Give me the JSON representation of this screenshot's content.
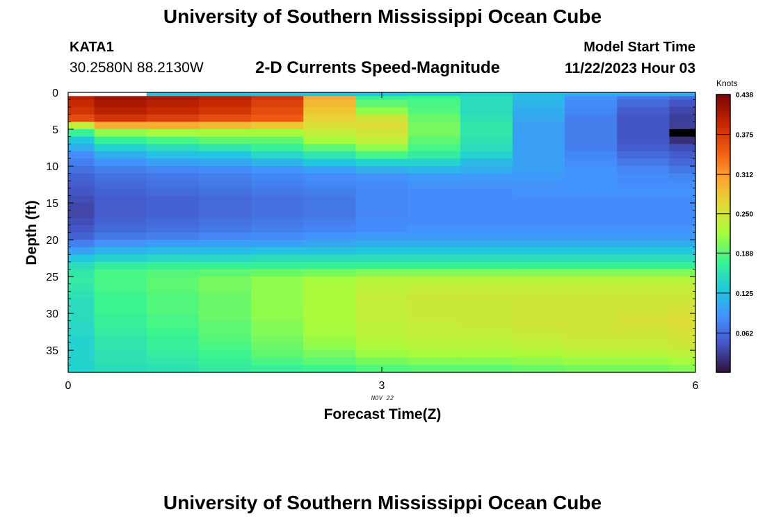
{
  "header": {
    "title": "University of Southern Mississippi Ocean Cube",
    "station_id": "KATA1",
    "station_coords": "30.2580N  88.2130W",
    "plot_title": "2-D Currents Speed-Magnitude",
    "model_start_label": "Model Start Time",
    "model_start_value": "11/22/2023 Hour 03"
  },
  "footer": {
    "title": "University of Southern Mississippi Ocean Cube"
  },
  "chart_data": {
    "type": "heatmap",
    "xlabel": "Forecast Time(Z)",
    "ylabel": "Depth (ft)",
    "x_date_label": "NOV 22",
    "xlim": [
      0,
      6
    ],
    "ylim": [
      38,
      0
    ],
    "x_ticks": [
      0,
      3,
      6
    ],
    "y_ticks": [
      0,
      5,
      10,
      15,
      20,
      25,
      30,
      35
    ],
    "x_columns": [
      0,
      0.5,
      1,
      1.5,
      2,
      2.5,
      3,
      3.5,
      4,
      4.5,
      5,
      5.5,
      6
    ],
    "depth_breaks": [
      0,
      0.5,
      1,
      2,
      3,
      4,
      5,
      6,
      7,
      8,
      9,
      10,
      11,
      12,
      13,
      14,
      15,
      16,
      17,
      18,
      19,
      20,
      21,
      22,
      23,
      24,
      25,
      26,
      27,
      28,
      29,
      30,
      31,
      32,
      33,
      34,
      35,
      36,
      37,
      38
    ],
    "speed_knots": [
      [
        null,
        null,
        0.125,
        0.125,
        0.125,
        0.125,
        0.13,
        0.135,
        0.14,
        0.12,
        0.11,
        0.11,
        0.11
      ],
      [
        0.4,
        0.42,
        0.41,
        0.4,
        0.38,
        0.3,
        0.17,
        0.175,
        0.15,
        0.12,
        0.09,
        0.07,
        0.06
      ],
      [
        0.39,
        0.41,
        0.4,
        0.39,
        0.37,
        0.29,
        0.19,
        0.18,
        0.15,
        0.115,
        0.085,
        0.06,
        0.045
      ],
      [
        0.38,
        0.4,
        0.39,
        0.38,
        0.36,
        0.28,
        0.21,
        0.185,
        0.15,
        0.11,
        0.08,
        0.05,
        0.035
      ],
      [
        0.36,
        0.38,
        0.37,
        0.36,
        0.35,
        0.27,
        0.25,
        0.195,
        0.155,
        0.105,
        0.075,
        0.045,
        0.03
      ],
      [
        0.24,
        0.3,
        0.3,
        0.29,
        0.28,
        0.26,
        0.26,
        0.2,
        0.16,
        0.1,
        0.075,
        0.045,
        0.03
      ],
      [
        0.17,
        0.21,
        0.22,
        0.22,
        0.22,
        0.24,
        0.25,
        0.2,
        0.16,
        0.1,
        0.075,
        0.045,
        null
      ],
      [
        0.13,
        0.17,
        0.18,
        0.19,
        0.19,
        0.22,
        0.24,
        0.19,
        0.155,
        0.1,
        0.075,
        0.045,
        0.02
      ],
      [
        0.11,
        0.14,
        0.15,
        0.16,
        0.17,
        0.19,
        0.21,
        0.18,
        0.15,
        0.1,
        0.075,
        0.05,
        0.04
      ],
      [
        0.085,
        0.11,
        0.125,
        0.13,
        0.145,
        0.16,
        0.18,
        0.165,
        0.14,
        0.1,
        0.08,
        0.06,
        0.05
      ],
      [
        0.075,
        0.09,
        0.1,
        0.105,
        0.115,
        0.13,
        0.14,
        0.14,
        0.12,
        0.1,
        0.085,
        0.07,
        0.06
      ],
      [
        0.065,
        0.075,
        0.08,
        0.085,
        0.09,
        0.1,
        0.11,
        0.115,
        0.11,
        0.1,
        0.09,
        0.08,
        0.07
      ],
      [
        0.055,
        0.065,
        0.07,
        0.075,
        0.08,
        0.085,
        0.09,
        0.095,
        0.095,
        0.095,
        0.09,
        0.085,
        0.08
      ],
      [
        0.05,
        0.06,
        0.065,
        0.07,
        0.075,
        0.08,
        0.085,
        0.09,
        0.09,
        0.09,
        0.09,
        0.085,
        0.085
      ],
      [
        0.045,
        0.055,
        0.06,
        0.065,
        0.07,
        0.075,
        0.08,
        0.085,
        0.085,
        0.09,
        0.09,
        0.09,
        0.09
      ],
      [
        0.04,
        0.05,
        0.055,
        0.06,
        0.065,
        0.07,
        0.08,
        0.085,
        0.085,
        0.085,
        0.085,
        0.085,
        0.085
      ],
      [
        0.035,
        0.05,
        0.055,
        0.06,
        0.065,
        0.07,
        0.08,
        0.085,
        0.085,
        0.085,
        0.085,
        0.085,
        0.085
      ],
      [
        0.035,
        0.05,
        0.055,
        0.06,
        0.065,
        0.07,
        0.08,
        0.085,
        0.085,
        0.085,
        0.085,
        0.085,
        0.085
      ],
      [
        0.04,
        0.055,
        0.06,
        0.065,
        0.07,
        0.075,
        0.085,
        0.085,
        0.085,
        0.085,
        0.085,
        0.085,
        0.085
      ],
      [
        0.045,
        0.06,
        0.065,
        0.07,
        0.075,
        0.08,
        0.085,
        0.09,
        0.09,
        0.09,
        0.09,
        0.09,
        0.09
      ],
      [
        0.055,
        0.07,
        0.075,
        0.08,
        0.085,
        0.09,
        0.095,
        0.095,
        0.095,
        0.095,
        0.095,
        0.095,
        0.095
      ],
      [
        0.075,
        0.09,
        0.095,
        0.1,
        0.1,
        0.105,
        0.11,
        0.11,
        0.11,
        0.11,
        0.11,
        0.11,
        0.11
      ],
      [
        0.1,
        0.115,
        0.12,
        0.12,
        0.125,
        0.125,
        0.13,
        0.13,
        0.13,
        0.13,
        0.13,
        0.13,
        0.13
      ],
      [
        0.13,
        0.14,
        0.145,
        0.145,
        0.15,
        0.15,
        0.15,
        0.15,
        0.15,
        0.15,
        0.15,
        0.15,
        0.15
      ],
      [
        0.15,
        0.165,
        0.17,
        0.17,
        0.17,
        0.17,
        0.17,
        0.17,
        0.17,
        0.17,
        0.17,
        0.17,
        0.17
      ],
      [
        0.16,
        0.18,
        0.185,
        0.19,
        0.195,
        0.2,
        0.205,
        0.205,
        0.205,
        0.205,
        0.205,
        0.205,
        0.205
      ],
      [
        0.165,
        0.18,
        0.19,
        0.2,
        0.21,
        0.22,
        0.23,
        0.23,
        0.23,
        0.23,
        0.23,
        0.23,
        0.23
      ],
      [
        0.16,
        0.18,
        0.19,
        0.2,
        0.21,
        0.225,
        0.235,
        0.24,
        0.24,
        0.24,
        0.24,
        0.24,
        0.24
      ],
      [
        0.155,
        0.175,
        0.185,
        0.195,
        0.21,
        0.225,
        0.24,
        0.245,
        0.245,
        0.245,
        0.245,
        0.245,
        0.245
      ],
      [
        0.15,
        0.175,
        0.185,
        0.195,
        0.21,
        0.225,
        0.24,
        0.245,
        0.245,
        0.25,
        0.25,
        0.25,
        0.25
      ],
      [
        0.15,
        0.175,
        0.185,
        0.195,
        0.21,
        0.225,
        0.24,
        0.245,
        0.245,
        0.25,
        0.25,
        0.25,
        0.255
      ],
      [
        0.15,
        0.17,
        0.18,
        0.195,
        0.21,
        0.225,
        0.24,
        0.245,
        0.245,
        0.25,
        0.25,
        0.255,
        0.26
      ],
      [
        0.145,
        0.17,
        0.18,
        0.19,
        0.205,
        0.22,
        0.235,
        0.24,
        0.245,
        0.25,
        0.25,
        0.255,
        0.26
      ],
      [
        0.145,
        0.165,
        0.175,
        0.19,
        0.205,
        0.22,
        0.235,
        0.24,
        0.24,
        0.245,
        0.25,
        0.25,
        0.255
      ],
      [
        0.14,
        0.16,
        0.17,
        0.185,
        0.2,
        0.215,
        0.23,
        0.235,
        0.235,
        0.24,
        0.245,
        0.245,
        0.25
      ],
      [
        0.14,
        0.16,
        0.17,
        0.18,
        0.195,
        0.21,
        0.225,
        0.23,
        0.23,
        0.235,
        0.24,
        0.24,
        0.245
      ],
      [
        0.14,
        0.155,
        0.165,
        0.175,
        0.19,
        0.2,
        0.215,
        0.22,
        0.22,
        0.225,
        0.23,
        0.23,
        0.235
      ],
      [
        0.14,
        0.155,
        0.16,
        0.17,
        0.18,
        0.19,
        0.2,
        0.205,
        0.205,
        0.21,
        0.215,
        0.215,
        0.22
      ],
      [
        0.14,
        0.15,
        0.155,
        0.165,
        0.17,
        0.175,
        0.185,
        0.19,
        0.19,
        0.195,
        0.2,
        0.2,
        0.205
      ]
    ],
    "colorbar": {
      "units": "Knots",
      "min": 0,
      "max": 0.438,
      "ticks": [
        "0.062",
        "0.125",
        "0.188",
        "0.250",
        "0.312",
        "0.375",
        "0.438"
      ],
      "colors": [
        "#30123b",
        "#4454c4",
        "#4490fe",
        "#1fc9dd",
        "#3bf58f",
        "#a4fc3c",
        "#e2dc38",
        "#fea331",
        "#ef5911",
        "#c22402",
        "#7a0403"
      ]
    },
    "grid": false
  }
}
